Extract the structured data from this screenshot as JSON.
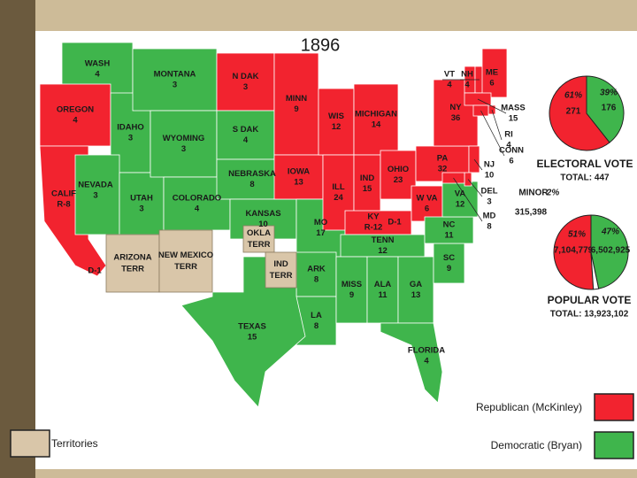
{
  "title": "1896",
  "legend": [
    {
      "label": "Republican (McKinley)",
      "party": "republican",
      "color": "#f2232f"
    },
    {
      "label": "Democratic (Bryan)",
      "party": "democratic",
      "color": "#3fb54c"
    },
    {
      "label": "Territories",
      "party": "territories",
      "color": "#d9c6a9"
    }
  ],
  "states": [
    {
      "name": "WASH",
      "votes": 4,
      "party": "democratic"
    },
    {
      "name": "OREGON",
      "votes": 4,
      "party": "republican"
    },
    {
      "name": "CALIF",
      "votes": "R-8",
      "party": "republican",
      "split": "D-1"
    },
    {
      "name": "IDAHO",
      "votes": 3,
      "party": "democratic"
    },
    {
      "name": "NEVADA",
      "votes": 3,
      "party": "democratic"
    },
    {
      "name": "UTAH",
      "votes": 3,
      "party": "democratic"
    },
    {
      "name": "MONTANA",
      "votes": 3,
      "party": "democratic"
    },
    {
      "name": "WYOMING",
      "votes": 3,
      "party": "democratic"
    },
    {
      "name": "COLORADO",
      "votes": 4,
      "party": "democratic"
    },
    {
      "name": "N DAK",
      "votes": 3,
      "party": "republican"
    },
    {
      "name": "S DAK",
      "votes": 4,
      "party": "democratic"
    },
    {
      "name": "NEBRASKA",
      "votes": 8,
      "party": "democratic"
    },
    {
      "name": "KANSAS",
      "votes": 10,
      "party": "democratic"
    },
    {
      "name": "MINN",
      "votes": 9,
      "party": "republican"
    },
    {
      "name": "IOWA",
      "votes": 13,
      "party": "republican"
    },
    {
      "name": "MO",
      "votes": 17,
      "party": "democratic"
    },
    {
      "name": "ARK",
      "votes": 8,
      "party": "democratic"
    },
    {
      "name": "LA",
      "votes": 8,
      "party": "democratic"
    },
    {
      "name": "TEXAS",
      "votes": 15,
      "party": "democratic"
    },
    {
      "name": "WIS",
      "votes": 12,
      "party": "republican"
    },
    {
      "name": "ILL",
      "votes": 24,
      "party": "republican"
    },
    {
      "name": "MICHIGAN",
      "votes": 14,
      "party": "republican"
    },
    {
      "name": "IND",
      "votes": 15,
      "party": "republican"
    },
    {
      "name": "OHIO",
      "votes": 23,
      "party": "republican"
    },
    {
      "name": "KY",
      "votes": "R-12",
      "party": "republican",
      "split": "D-1"
    },
    {
      "name": "W VA",
      "votes": 6,
      "party": "republican"
    },
    {
      "name": "TENN",
      "votes": 12,
      "party": "democratic"
    },
    {
      "name": "MISS",
      "votes": 9,
      "party": "democratic"
    },
    {
      "name": "ALA",
      "votes": 11,
      "party": "democratic"
    },
    {
      "name": "GA",
      "votes": 13,
      "party": "democratic"
    },
    {
      "name": "FLORIDA",
      "votes": 4,
      "party": "democratic"
    },
    {
      "name": "SC",
      "votes": 9,
      "party": "democratic"
    },
    {
      "name": "NC",
      "votes": 11,
      "party": "democratic"
    },
    {
      "name": "VA",
      "votes": 12,
      "party": "democratic"
    },
    {
      "name": "PA",
      "votes": 32,
      "party": "republican"
    },
    {
      "name": "NY",
      "votes": 36,
      "party": "republican"
    },
    {
      "name": "NJ",
      "votes": 10,
      "party": "republican"
    },
    {
      "name": "DEL",
      "votes": 3,
      "party": "republican"
    },
    {
      "name": "MD",
      "votes": 8,
      "party": "republican"
    },
    {
      "name": "VT",
      "votes": 4,
      "party": "republican"
    },
    {
      "name": "NH",
      "votes": 4,
      "party": "republican"
    },
    {
      "name": "ME",
      "votes": 6,
      "party": "republican"
    },
    {
      "name": "MASS",
      "votes": 15,
      "party": "republican"
    },
    {
      "name": "RI",
      "votes": 4,
      "party": "republican"
    },
    {
      "name": "CONN",
      "votes": 6,
      "party": "republican"
    }
  ],
  "territories": [
    {
      "lines": [
        "ARIZONA",
        "TERR"
      ],
      "party": "territories"
    },
    {
      "lines": [
        "NEW MEXICO",
        "TERR"
      ],
      "party": "territories"
    },
    {
      "lines": [
        "OKLA",
        "TERR"
      ],
      "party": "territories"
    },
    {
      "lines": [
        "IND",
        "TERR"
      ],
      "party": "territories"
    }
  ],
  "electoral_vote": {
    "title": "ELECTORAL VOTE",
    "total": "TOTAL: 447",
    "slices": [
      {
        "party": "republican",
        "color": "#f2232f",
        "percent_label": "61%",
        "votes": 271
      },
      {
        "party": "democratic",
        "color": "#3fb54c",
        "percent_label": "39%",
        "votes": 176
      }
    ]
  },
  "popular_vote": {
    "title": "POPULAR VOTE",
    "total": "TOTAL: 13,923,102",
    "slices": [
      {
        "party": "republican",
        "color": "#f2232f",
        "percent_label": "51%",
        "votes": 7104779,
        "votes_label": "7,104,779"
      },
      {
        "party": "democratic",
        "color": "#3fb54c",
        "percent_label": "47%",
        "votes": 6502925,
        "votes_label": "6,502,925"
      },
      {
        "name": "MINOR",
        "color": "#ffffff",
        "percent_label": "2%",
        "votes": 315398,
        "votes_label": "315,398"
      }
    ]
  }
}
